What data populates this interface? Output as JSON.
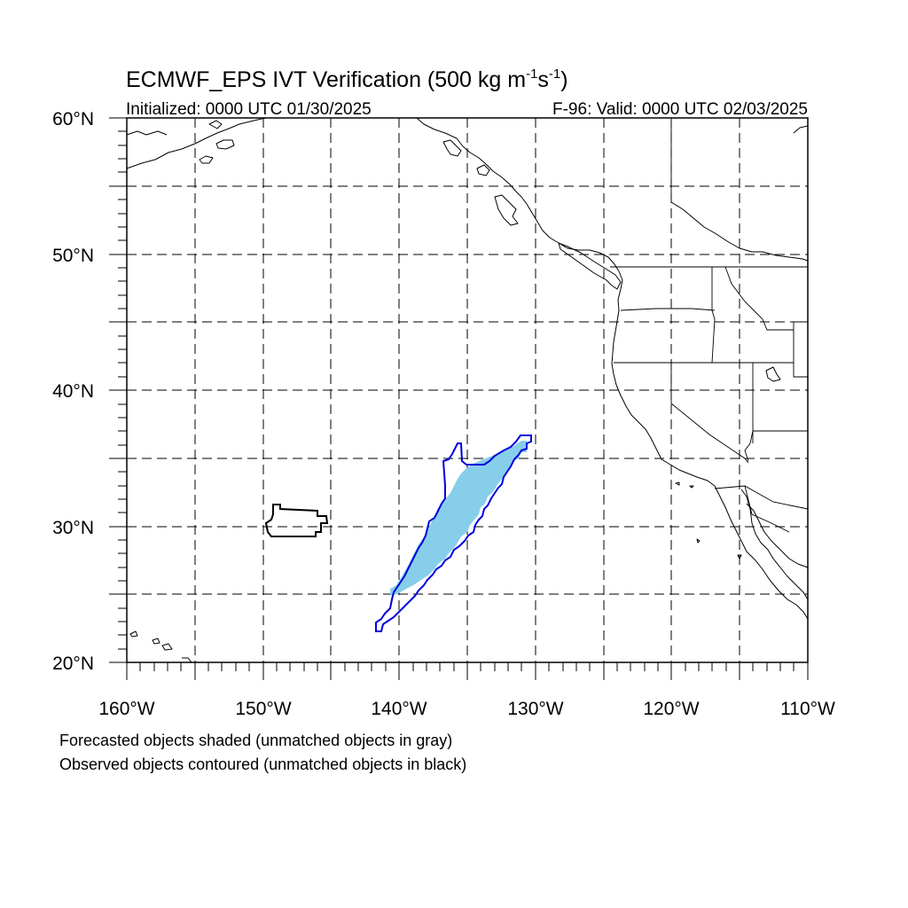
{
  "figure": {
    "title_main": "ECMWF_EPS IVT Verification (500 kg m",
    "title_exp1": "-1",
    "title_mid": "s",
    "title_exp2": "-1",
    "title_end": ")",
    "initialized": "Initialized: 0000 UTC 01/30/2025",
    "valid": "F-96: Valid: 0000 UTC 02/03/2025",
    "note_forecast": "Forecasted objects shaded (unmatched objects in gray)",
    "note_observed": "Observed objects contoured (unmatched objects in black)"
  },
  "axes": {
    "lon_range": [
      -160,
      -110
    ],
    "lat_range": [
      20,
      60
    ],
    "lon_labels": [
      "160°W",
      "150°W",
      "140°W",
      "130°W",
      "120°W",
      "110°W"
    ],
    "lat_labels": [
      "60°N",
      "50°N",
      "40°N",
      "30°N",
      "20°N"
    ]
  },
  "objects": {
    "forecast_matched_color": "#87ceeb",
    "observed_matched_color": "#0000dd",
    "observed_unmatched_color": "#000000"
  }
}
